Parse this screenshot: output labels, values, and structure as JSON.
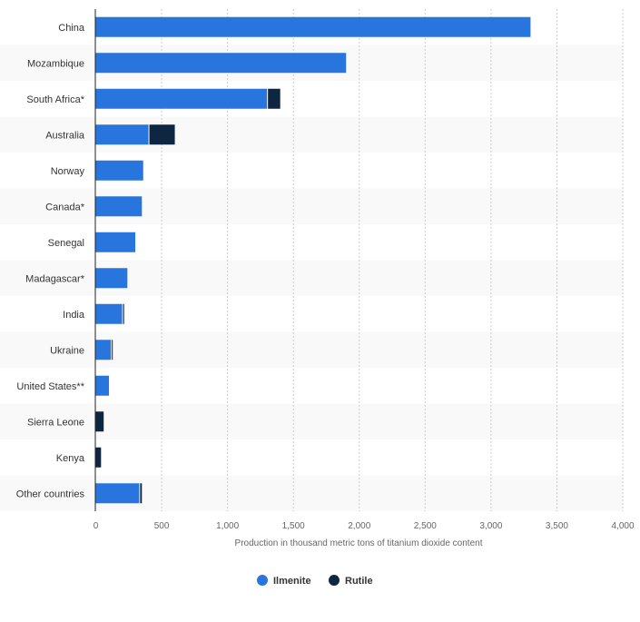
{
  "chart_data": {
    "type": "bar",
    "orientation": "horizontal",
    "stacked": true,
    "categories": [
      "China",
      "Mozambique",
      "South Africa*",
      "Australia",
      "Norway",
      "Canada*",
      "Senegal",
      "Madagascar*",
      "India",
      "Ukraine",
      "United States**",
      "Sierra Leone",
      "Kenya",
      "Other countries"
    ],
    "series": [
      {
        "name": "Ilmenite",
        "color": "#2876dd",
        "values": [
          3300,
          1900,
          1300,
          400,
          360,
          350,
          300,
          240,
          200,
          115,
          100,
          0,
          0,
          330
        ]
      },
      {
        "name": "Rutile",
        "color": "#0f2642",
        "values": [
          0,
          0,
          100,
          200,
          0,
          0,
          0,
          0,
          15,
          10,
          0,
          60,
          40,
          20
        ]
      }
    ],
    "xlabel": "Production in thousand metric tons of titanium dioxide content",
    "ylabel": "",
    "xlim": [
      0,
      4000
    ],
    "xticks": [
      0,
      500,
      1000,
      1500,
      2000,
      2500,
      3000,
      3500,
      4000
    ],
    "xtick_labels": [
      "0",
      "500",
      "1,000",
      "1,500",
      "2,000",
      "2,500",
      "3,000",
      "3,500",
      "4,000"
    ],
    "grid": true,
    "legend": "bottom-center"
  }
}
